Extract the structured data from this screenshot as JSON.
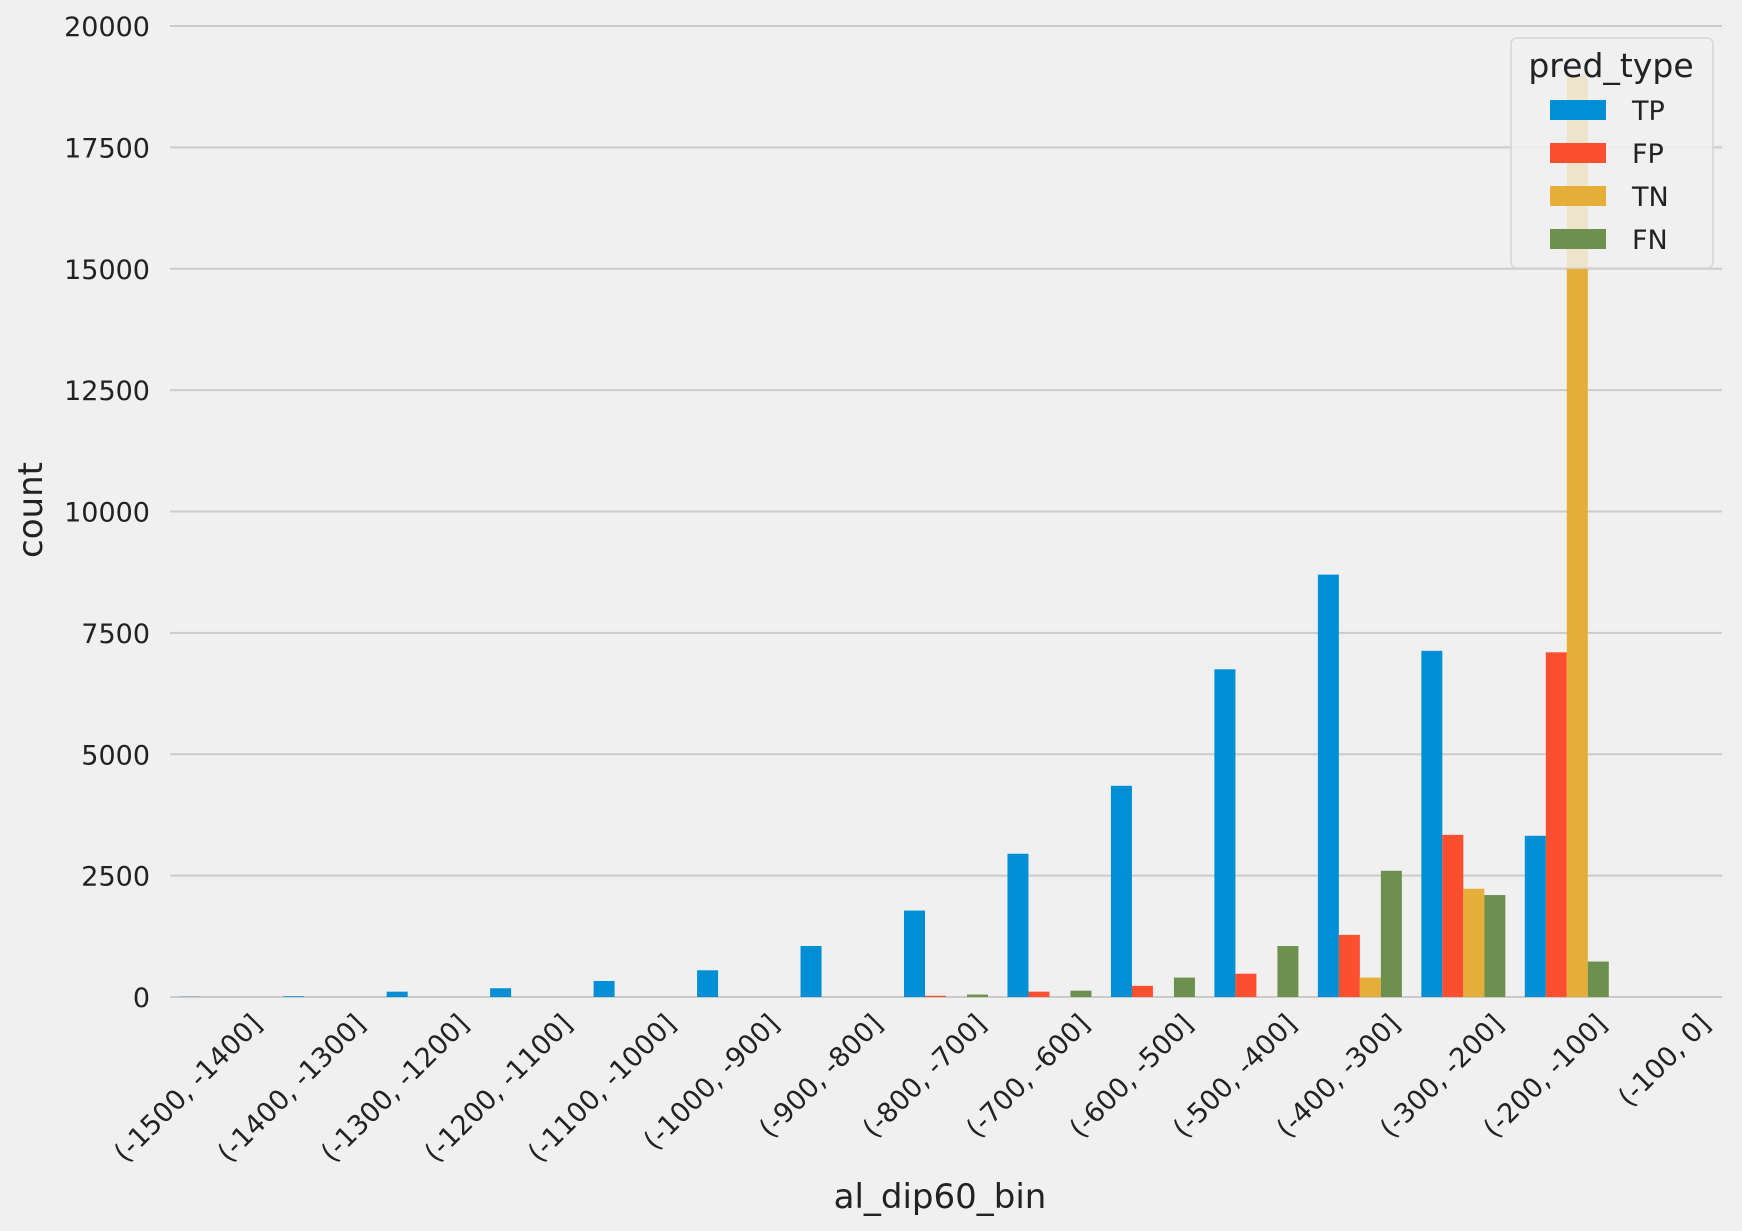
{
  "chart_data": {
    "type": "bar",
    "xlabel": "al_dip60_bin",
    "ylabel": "count",
    "ylim": [
      0,
      20000
    ],
    "yticks": [
      0,
      2500,
      5000,
      7500,
      10000,
      12500,
      15000,
      17500,
      20000
    ],
    "grid": "horizontal",
    "legend_title": "pred_type",
    "legend_position": "top-right",
    "categories": [
      "(-1500, -1400]",
      "(-1400, -1300]",
      "(-1300, -1200]",
      "(-1200, -1100]",
      "(-1100, -1000]",
      "(-1000, -900]",
      "(-900, -800]",
      "(-800, -700]",
      "(-700, -600]",
      "(-600, -500]",
      "(-500, -400]",
      "(-400, -300]",
      "(-300, -200]",
      "(-200, -100]",
      "(-100, 0]"
    ],
    "series": [
      {
        "name": "TP",
        "color": "#008fd5",
        "values": [
          5,
          15,
          110,
          180,
          330,
          550,
          1050,
          1780,
          2950,
          4350,
          6750,
          8700,
          7130,
          3320,
          0
        ]
      },
      {
        "name": "FP",
        "color": "#fc4f30",
        "values": [
          0,
          0,
          0,
          0,
          0,
          0,
          0,
          25,
          110,
          230,
          480,
          1280,
          3340,
          7100,
          0
        ]
      },
      {
        "name": "TN",
        "color": "#e5ae38",
        "values": [
          0,
          0,
          0,
          0,
          0,
          0,
          0,
          0,
          0,
          0,
          0,
          400,
          2230,
          19000,
          0
        ]
      },
      {
        "name": "FN",
        "color": "#6d904f",
        "values": [
          0,
          0,
          0,
          0,
          0,
          0,
          0,
          50,
          130,
          400,
          1050,
          2600,
          2100,
          730,
          0
        ]
      }
    ]
  }
}
